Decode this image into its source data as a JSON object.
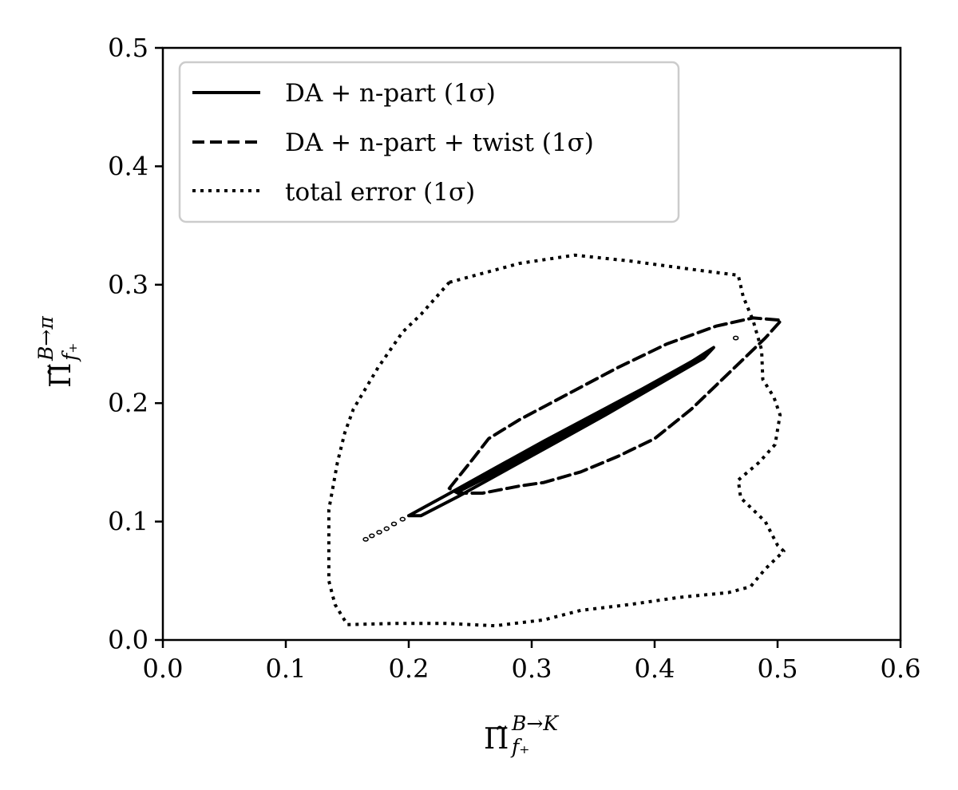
{
  "chart_data": {
    "type": "contour",
    "xlabel": {
      "symbol": "Π̃",
      "sup": "B→K",
      "sub": "f₊"
    },
    "ylabel": {
      "symbol": "Π̃",
      "sup": "B→π",
      "sub": "f₊"
    },
    "xlim": [
      0.0,
      0.6
    ],
    "ylim": [
      0.0,
      0.5
    ],
    "xticks": [
      "0.0",
      "0.1",
      "0.2",
      "0.3",
      "0.4",
      "0.5",
      "0.6"
    ],
    "yticks": [
      "0.0",
      "0.1",
      "0.2",
      "0.3",
      "0.4",
      "0.5"
    ],
    "grid": false,
    "legend_position": "top-left",
    "series": [
      {
        "name": "DA + n-part (1σ)",
        "style": "solid",
        "contours": [
          [
            [
              0.2,
              0.105
            ],
            [
              0.23,
              0.122
            ],
            [
              0.27,
              0.145
            ],
            [
              0.31,
              0.168
            ],
            [
              0.35,
              0.19
            ],
            [
              0.39,
              0.212
            ],
            [
              0.43,
              0.235
            ],
            [
              0.448,
              0.247
            ],
            [
              0.44,
              0.238
            ],
            [
              0.4,
              0.214
            ],
            [
              0.36,
              0.19
            ],
            [
              0.32,
              0.167
            ],
            [
              0.28,
              0.144
            ],
            [
              0.24,
              0.121
            ],
            [
              0.21,
              0.105
            ],
            [
              0.2,
              0.105
            ]
          ],
          [
            [
              0.24,
              0.125
            ],
            [
              0.28,
              0.148
            ],
            [
              0.32,
              0.171
            ],
            [
              0.36,
              0.194
            ],
            [
              0.4,
              0.217
            ],
            [
              0.445,
              0.244
            ],
            [
              0.43,
              0.233
            ],
            [
              0.39,
              0.21
            ],
            [
              0.35,
              0.187
            ],
            [
              0.31,
              0.164
            ],
            [
              0.27,
              0.141
            ],
            [
              0.24,
              0.125
            ]
          ]
        ]
      },
      {
        "name": "DA + n-part + twist (1σ)",
        "style": "dashed",
        "contours": [
          [
            [
              0.233,
              0.128
            ],
            [
              0.25,
              0.15
            ],
            [
              0.265,
              0.17
            ],
            [
              0.29,
              0.186
            ],
            [
              0.33,
              0.208
            ],
            [
              0.37,
              0.23
            ],
            [
              0.41,
              0.25
            ],
            [
              0.45,
              0.265
            ],
            [
              0.48,
              0.272
            ],
            [
              0.503,
              0.27
            ],
            [
              0.49,
              0.255
            ],
            [
              0.47,
              0.235
            ],
            [
              0.45,
              0.215
            ],
            [
              0.43,
              0.195
            ],
            [
              0.4,
              0.17
            ],
            [
              0.37,
              0.155
            ],
            [
              0.34,
              0.142
            ],
            [
              0.31,
              0.133
            ],
            [
              0.29,
              0.13
            ],
            [
              0.26,
              0.124
            ],
            [
              0.24,
              0.124
            ],
            [
              0.233,
              0.128
            ]
          ]
        ]
      },
      {
        "name": "total error (1σ)",
        "style": "dotted",
        "contours": [
          [
            [
              0.233,
              0.302
            ],
            [
              0.29,
              0.318
            ],
            [
              0.335,
              0.325
            ],
            [
              0.38,
              0.32
            ],
            [
              0.43,
              0.313
            ],
            [
              0.468,
              0.308
            ],
            [
              0.472,
              0.29
            ],
            [
              0.48,
              0.27
            ],
            [
              0.487,
              0.245
            ],
            [
              0.488,
              0.22
            ],
            [
              0.497,
              0.205
            ],
            [
              0.502,
              0.19
            ],
            [
              0.498,
              0.165
            ],
            [
              0.485,
              0.15
            ],
            [
              0.468,
              0.135
            ],
            [
              0.47,
              0.12
            ],
            [
              0.49,
              0.1
            ],
            [
              0.5,
              0.08
            ],
            [
              0.505,
              0.075
            ],
            [
              0.49,
              0.06
            ],
            [
              0.478,
              0.045
            ],
            [
              0.46,
              0.04
            ],
            [
              0.42,
              0.036
            ],
            [
              0.38,
              0.03
            ],
            [
              0.34,
              0.025
            ],
            [
              0.31,
              0.017
            ],
            [
              0.27,
              0.012
            ],
            [
              0.23,
              0.014
            ],
            [
              0.19,
              0.014
            ],
            [
              0.15,
              0.013
            ],
            [
              0.14,
              0.03
            ],
            [
              0.135,
              0.05
            ],
            [
              0.135,
              0.11
            ],
            [
              0.142,
              0.15
            ],
            [
              0.148,
              0.175
            ],
            [
              0.155,
              0.195
            ],
            [
              0.175,
              0.23
            ],
            [
              0.195,
              0.26
            ],
            [
              0.21,
              0.275
            ],
            [
              0.233,
              0.302
            ]
          ]
        ]
      }
    ],
    "scatter": {
      "name": "",
      "x": [
        0.165,
        0.17,
        0.176,
        0.182,
        0.188,
        0.195,
        0.466
      ],
      "y": [
        0.085,
        0.088,
        0.091,
        0.094,
        0.098,
        0.102,
        0.255
      ]
    }
  }
}
